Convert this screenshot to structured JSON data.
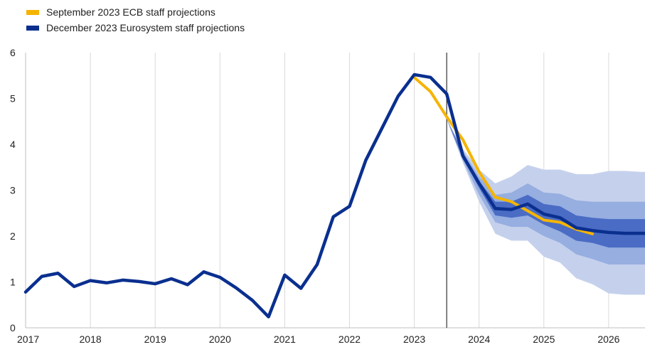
{
  "chart_data": {
    "type": "line",
    "title": "",
    "xlabel": "",
    "ylabel": "",
    "ylim": [
      0,
      6
    ],
    "y_ticks": [
      "0",
      "1",
      "2",
      "3",
      "4",
      "5",
      "6"
    ],
    "x_ticks": [
      "2017",
      "2018",
      "2019",
      "2020",
      "2021",
      "2022",
      "2023",
      "2024",
      "2025",
      "2026"
    ],
    "grid": "vertical",
    "legend_position": "top-left",
    "projection_start": "2023Q3",
    "series": [
      {
        "name": "September 2023 ECB staff projections",
        "color": "#f5b400",
        "points": [
          [
            "2023Q1",
            5.46
          ],
          [
            "2023Q2",
            5.15
          ],
          [
            "2023Q3",
            4.6
          ],
          [
            "2023Q4",
            4.1
          ],
          [
            "2024Q1",
            3.4
          ],
          [
            "2024Q2",
            2.85
          ],
          [
            "2024Q3",
            2.75
          ],
          [
            "2024Q4",
            2.55
          ],
          [
            "2025Q1",
            2.35
          ],
          [
            "2025Q2",
            2.3
          ],
          [
            "2025Q3",
            2.15
          ],
          [
            "2025Q4",
            2.05
          ]
        ]
      },
      {
        "name": "December 2023 Eurosystem staff projections",
        "color": "#0a2f8f",
        "points": [
          [
            "2017Q1",
            0.78
          ],
          [
            "2017Q2",
            1.12
          ],
          [
            "2017Q3",
            1.19
          ],
          [
            "2017Q4",
            0.9
          ],
          [
            "2018Q1",
            1.03
          ],
          [
            "2018Q2",
            0.98
          ],
          [
            "2018Q3",
            1.04
          ],
          [
            "2018Q4",
            1.01
          ],
          [
            "2019Q1",
            0.96
          ],
          [
            "2019Q2",
            1.07
          ],
          [
            "2019Q3",
            0.94
          ],
          [
            "2019Q4",
            1.22
          ],
          [
            "2020Q1",
            1.1
          ],
          [
            "2020Q2",
            0.87
          ],
          [
            "2020Q3",
            0.6
          ],
          [
            "2020Q4",
            0.24
          ],
          [
            "2021Q1",
            1.15
          ],
          [
            "2021Q2",
            0.86
          ],
          [
            "2021Q3",
            1.38
          ],
          [
            "2021Q4",
            2.42
          ],
          [
            "2022Q1",
            2.65
          ],
          [
            "2022Q2",
            3.65
          ],
          [
            "2022Q3",
            4.35
          ],
          [
            "2022Q4",
            5.05
          ],
          [
            "2023Q1",
            5.52
          ],
          [
            "2023Q2",
            5.46
          ],
          [
            "2023Q3",
            5.1
          ],
          [
            "2023Q4",
            3.75
          ],
          [
            "2024Q1",
            3.15
          ],
          [
            "2024Q2",
            2.6
          ],
          [
            "2024Q3",
            2.58
          ],
          [
            "2024Q4",
            2.7
          ],
          [
            "2025Q1",
            2.48
          ],
          [
            "2025Q2",
            2.4
          ],
          [
            "2025Q3",
            2.18
          ],
          [
            "2025Q4",
            2.12
          ],
          [
            "2026Q1",
            2.08
          ],
          [
            "2026Q2",
            2.06
          ],
          [
            "2026Q3",
            2.06
          ],
          [
            "2026Q4",
            2.06
          ]
        ]
      }
    ],
    "uncertainty_bands": [
      {
        "color": "#c5d1ec",
        "x": [
          "2023Q3",
          "2023Q4",
          "2024Q1",
          "2024Q2",
          "2024Q3",
          "2024Q4",
          "2025Q1",
          "2025Q2",
          "2025Q3",
          "2025Q4",
          "2026Q1",
          "2026Q2",
          "2026Q3",
          "2026Q4"
        ],
        "upper": [
          4.55,
          3.9,
          3.45,
          3.15,
          3.3,
          3.55,
          3.45,
          3.45,
          3.35,
          3.35,
          3.42,
          3.42,
          3.4,
          3.4
        ],
        "lower": [
          4.55,
          3.6,
          2.75,
          2.05,
          1.9,
          1.9,
          1.55,
          1.42,
          1.08,
          0.95,
          0.75,
          0.72,
          0.72,
          0.72
        ]
      },
      {
        "color": "#96aee0",
        "x": [
          "2023Q3",
          "2023Q4",
          "2024Q1",
          "2024Q2",
          "2024Q3",
          "2024Q4",
          "2025Q1",
          "2025Q2",
          "2025Q3",
          "2025Q4",
          "2026Q1",
          "2026Q2",
          "2026Q3",
          "2026Q4"
        ],
        "upper": [
          4.55,
          3.85,
          3.3,
          2.9,
          2.95,
          3.15,
          2.95,
          2.92,
          2.78,
          2.75,
          2.75,
          2.75,
          2.75,
          2.75
        ],
        "lower": [
          4.55,
          3.65,
          2.9,
          2.3,
          2.2,
          2.2,
          2.0,
          1.85,
          1.6,
          1.5,
          1.38,
          1.38,
          1.38,
          1.38
        ]
      },
      {
        "color": "#4a6cc4",
        "x": [
          "2023Q3",
          "2023Q4",
          "2024Q1",
          "2024Q2",
          "2024Q3",
          "2024Q4",
          "2025Q1",
          "2025Q2",
          "2025Q3",
          "2025Q4",
          "2026Q1",
          "2026Q2",
          "2026Q3",
          "2026Q4"
        ],
        "upper": [
          4.55,
          3.8,
          3.2,
          2.75,
          2.75,
          2.9,
          2.7,
          2.65,
          2.45,
          2.4,
          2.37,
          2.37,
          2.37,
          2.37
        ],
        "lower": [
          4.55,
          3.7,
          3.05,
          2.45,
          2.4,
          2.45,
          2.25,
          2.1,
          1.9,
          1.85,
          1.75,
          1.75,
          1.75,
          1.75
        ]
      }
    ]
  }
}
